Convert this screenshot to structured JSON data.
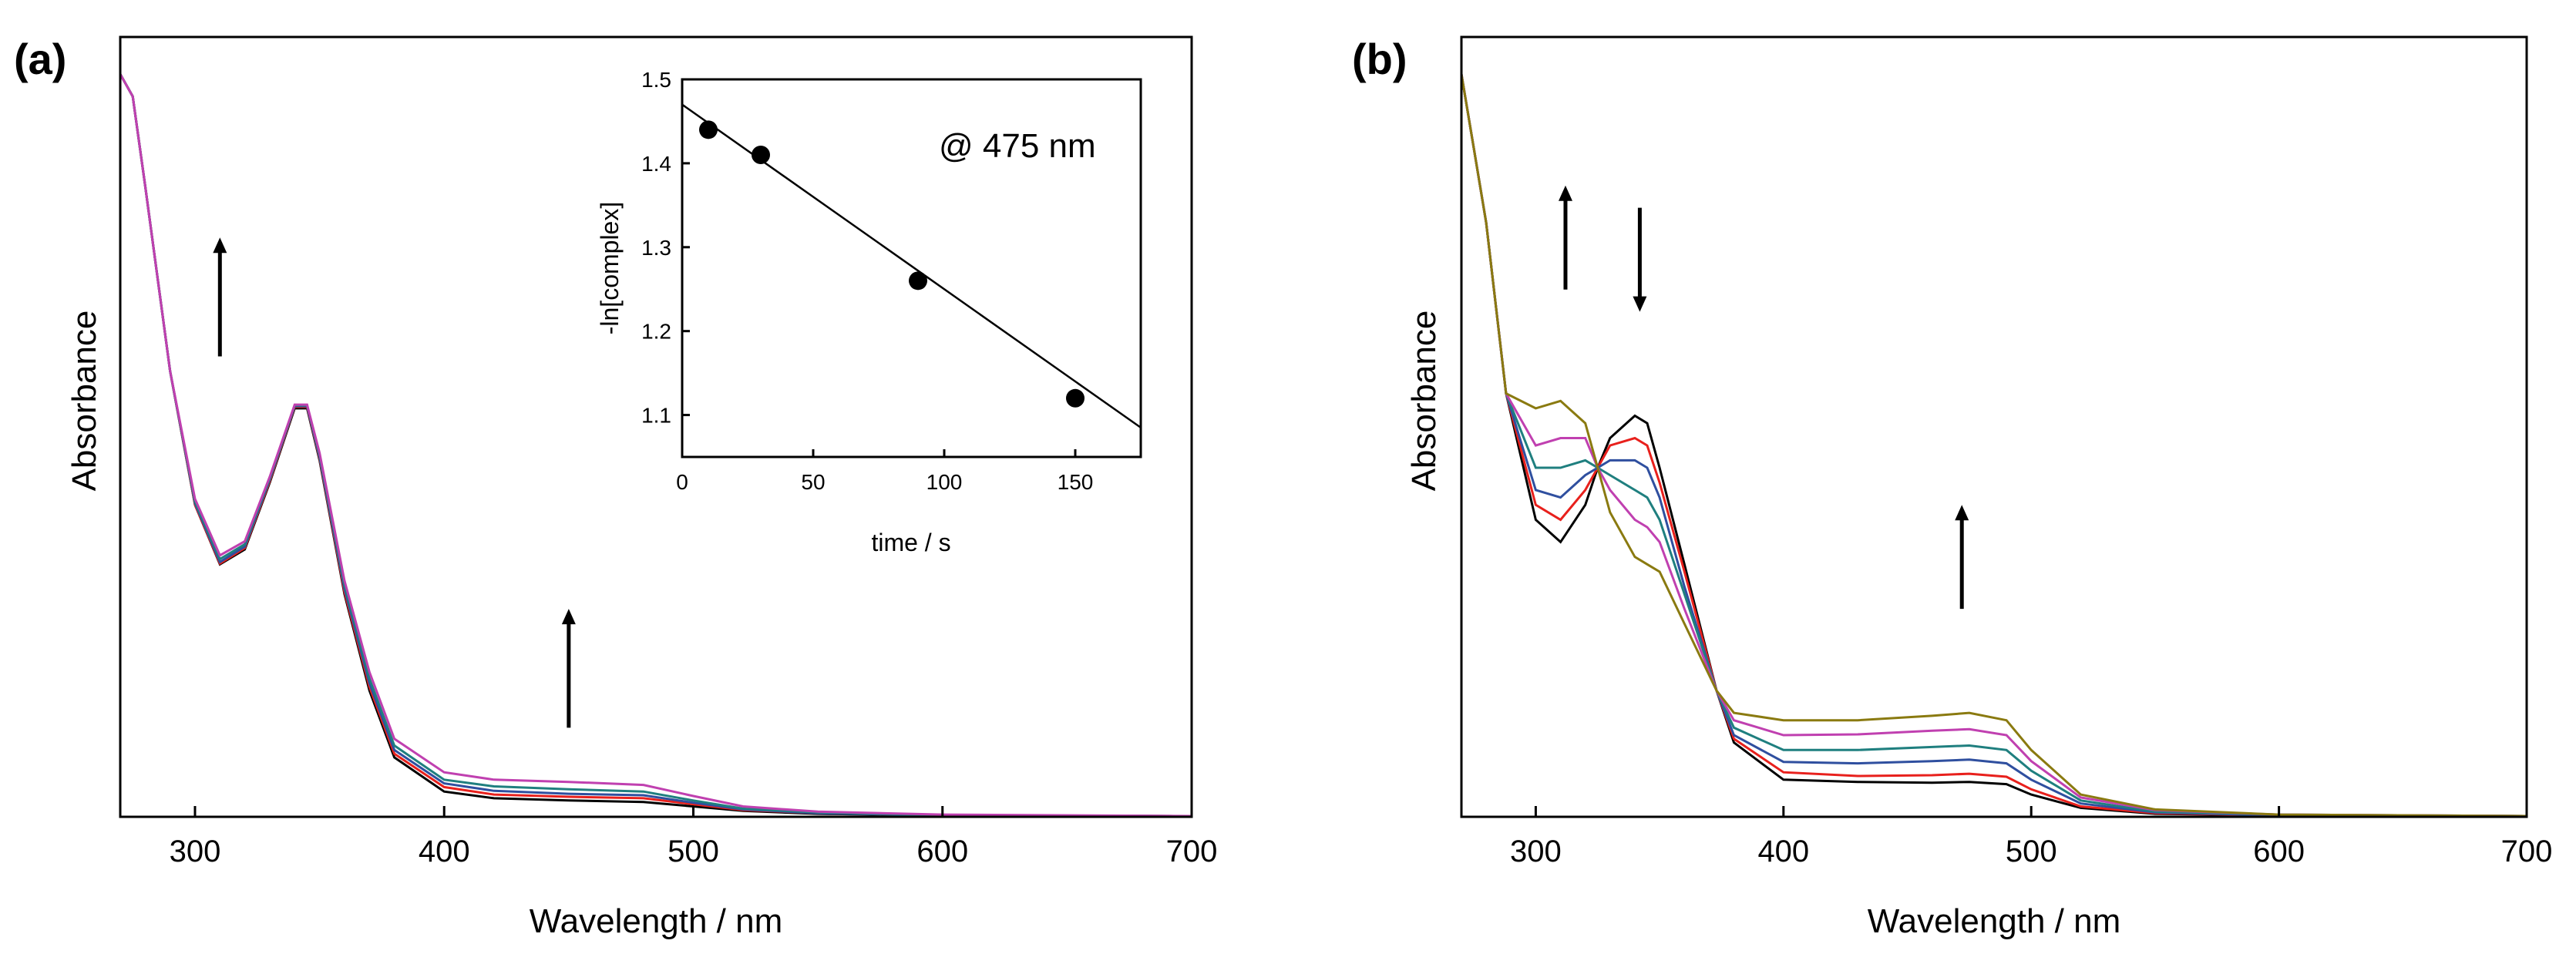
{
  "chart_data": [
    {
      "type": "line",
      "panel_label": "(a)",
      "xlabel": "Wavelength / nm",
      "ylabel": "Absorbance",
      "xlim": [
        270,
        700
      ],
      "ylim": [
        0,
        1.05
      ],
      "xticks": [
        300,
        400,
        500,
        600,
        700
      ],
      "yticks_shown": false,
      "series": [
        {
          "color": "#000000",
          "x": [
            270,
            275,
            280,
            290,
            300,
            310,
            320,
            330,
            340,
            345,
            350,
            360,
            370,
            380,
            400,
            420,
            450,
            480,
            500,
            520,
            550,
            600,
            700
          ],
          "y": [
            1.0,
            0.97,
            0.85,
            0.6,
            0.42,
            0.34,
            0.36,
            0.45,
            0.55,
            0.55,
            0.48,
            0.3,
            0.17,
            0.08,
            0.034,
            0.025,
            0.022,
            0.02,
            0.014,
            0.008,
            0.004,
            0.002,
            0.001
          ]
        },
        {
          "color": "#e8201c",
          "x": [
            270,
            275,
            280,
            290,
            300,
            310,
            320,
            330,
            340,
            345,
            350,
            360,
            370,
            380,
            400,
            420,
            450,
            480,
            500,
            520,
            550,
            600,
            700
          ],
          "y": [
            1.0,
            0.97,
            0.85,
            0.6,
            0.42,
            0.341,
            0.362,
            0.452,
            0.552,
            0.552,
            0.482,
            0.303,
            0.175,
            0.085,
            0.04,
            0.03,
            0.027,
            0.025,
            0.017,
            0.009,
            0.005,
            0.002,
            0.001
          ]
        },
        {
          "color": "#2f4f9f",
          "x": [
            270,
            275,
            280,
            290,
            300,
            310,
            320,
            330,
            340,
            345,
            350,
            360,
            370,
            380,
            400,
            420,
            450,
            480,
            500,
            520,
            550,
            600,
            700
          ],
          "y": [
            1.0,
            0.97,
            0.85,
            0.6,
            0.422,
            0.343,
            0.364,
            0.454,
            0.553,
            0.553,
            0.484,
            0.307,
            0.18,
            0.09,
            0.045,
            0.035,
            0.031,
            0.029,
            0.019,
            0.01,
            0.005,
            0.002,
            0.001
          ]
        },
        {
          "color": "#1f7f7f",
          "x": [
            270,
            275,
            280,
            290,
            300,
            310,
            320,
            330,
            340,
            345,
            350,
            360,
            370,
            380,
            400,
            420,
            450,
            480,
            500,
            520,
            550,
            600,
            700
          ],
          "y": [
            1.0,
            0.97,
            0.85,
            0.6,
            0.424,
            0.347,
            0.367,
            0.456,
            0.554,
            0.554,
            0.487,
            0.312,
            0.186,
            0.096,
            0.05,
            0.041,
            0.037,
            0.034,
            0.022,
            0.011,
            0.006,
            0.002,
            0.001
          ]
        },
        {
          "color": "#c040b0",
          "x": [
            270,
            275,
            280,
            290,
            300,
            310,
            320,
            330,
            340,
            345,
            350,
            360,
            370,
            380,
            400,
            420,
            450,
            480,
            500,
            520,
            550,
            600,
            700
          ],
          "y": [
            1.0,
            0.97,
            0.85,
            0.6,
            0.428,
            0.352,
            0.371,
            0.458,
            0.555,
            0.555,
            0.49,
            0.318,
            0.195,
            0.105,
            0.06,
            0.05,
            0.047,
            0.043,
            0.028,
            0.014,
            0.007,
            0.003,
            0.001
          ]
        }
      ],
      "arrows": [
        {
          "direction": "up",
          "x": 310,
          "y_from": 0.62,
          "y_to": 0.78
        },
        {
          "direction": "up",
          "x": 450,
          "y_from": 0.12,
          "y_to": 0.28
        }
      ],
      "inset": {
        "type": "scatter",
        "annotation": "@ 475 nm",
        "xlabel": "time / s",
        "ylabel": "-ln[complex]",
        "xlim": [
          0,
          175
        ],
        "ylim": [
          1.05,
          1.5
        ],
        "xticks": [
          0,
          50,
          100,
          150
        ],
        "yticks": [
          1.1,
          1.2,
          1.3,
          1.4,
          1.5
        ],
        "points": {
          "x": [
            10,
            30,
            90,
            150
          ],
          "y": [
            1.44,
            1.41,
            1.26,
            1.12
          ]
        },
        "fit_line": {
          "x": [
            0,
            175
          ],
          "y": [
            1.47,
            1.085
          ]
        }
      }
    },
    {
      "type": "line",
      "panel_label": "(b)",
      "xlabel": "Wavelength / nm",
      "ylabel": "Absorbance",
      "xlim": [
        270,
        700
      ],
      "ylim": [
        0,
        1.05
      ],
      "xticks": [
        300,
        400,
        500,
        600,
        700
      ],
      "yticks_shown": false,
      "series": [
        {
          "color": "#000000",
          "x": [
            270,
            275,
            280,
            288,
            300,
            310,
            320,
            325,
            330,
            340,
            345,
            350,
            360,
            373,
            380,
            400,
            430,
            460,
            475,
            490,
            500,
            520,
            550,
            600,
            700
          ],
          "y": [
            1.0,
            0.9,
            0.8,
            0.57,
            0.4,
            0.37,
            0.42,
            0.47,
            0.51,
            0.54,
            0.53,
            0.47,
            0.34,
            0.17,
            0.1,
            0.05,
            0.047,
            0.046,
            0.047,
            0.044,
            0.03,
            0.012,
            0.004,
            0.002,
            0.001
          ]
        },
        {
          "color": "#e8201c",
          "x": [
            270,
            275,
            280,
            288,
            300,
            310,
            320,
            325,
            330,
            340,
            345,
            350,
            360,
            373,
            380,
            400,
            430,
            460,
            475,
            490,
            500,
            520,
            550,
            600,
            700
          ],
          "y": [
            1.0,
            0.9,
            0.8,
            0.57,
            0.42,
            0.4,
            0.44,
            0.47,
            0.5,
            0.51,
            0.5,
            0.45,
            0.33,
            0.17,
            0.105,
            0.06,
            0.055,
            0.056,
            0.058,
            0.054,
            0.037,
            0.014,
            0.005,
            0.002,
            0.001
          ]
        },
        {
          "color": "#2f4f9f",
          "x": [
            270,
            275,
            280,
            288,
            300,
            310,
            320,
            325,
            330,
            340,
            345,
            350,
            360,
            373,
            380,
            400,
            430,
            460,
            475,
            490,
            500,
            520,
            550,
            600,
            700
          ],
          "y": [
            1.0,
            0.9,
            0.8,
            0.57,
            0.44,
            0.43,
            0.46,
            0.47,
            0.48,
            0.48,
            0.47,
            0.43,
            0.31,
            0.17,
            0.11,
            0.074,
            0.072,
            0.075,
            0.077,
            0.072,
            0.05,
            0.018,
            0.006,
            0.002,
            0.001
          ]
        },
        {
          "color": "#1f7f7f",
          "x": [
            270,
            275,
            280,
            288,
            300,
            310,
            320,
            325,
            330,
            340,
            345,
            350,
            360,
            373,
            380,
            400,
            430,
            460,
            475,
            490,
            500,
            520,
            550,
            600,
            700
          ],
          "y": [
            1.0,
            0.9,
            0.8,
            0.57,
            0.47,
            0.47,
            0.48,
            0.47,
            0.46,
            0.44,
            0.43,
            0.4,
            0.3,
            0.17,
            0.12,
            0.09,
            0.09,
            0.094,
            0.096,
            0.09,
            0.062,
            0.022,
            0.007,
            0.003,
            0.001
          ]
        },
        {
          "color": "#c040b0",
          "x": [
            270,
            275,
            280,
            288,
            300,
            310,
            320,
            325,
            330,
            340,
            345,
            350,
            360,
            373,
            380,
            400,
            430,
            460,
            475,
            490,
            500,
            520,
            550,
            600,
            700
          ],
          "y": [
            1.0,
            0.9,
            0.8,
            0.57,
            0.5,
            0.51,
            0.51,
            0.47,
            0.44,
            0.4,
            0.39,
            0.37,
            0.28,
            0.17,
            0.13,
            0.11,
            0.111,
            0.116,
            0.118,
            0.11,
            0.075,
            0.026,
            0.009,
            0.003,
            0.001
          ]
        },
        {
          "color": "#8a7a10",
          "x": [
            270,
            275,
            280,
            288,
            300,
            310,
            320,
            325,
            330,
            340,
            345,
            350,
            360,
            373,
            380,
            400,
            430,
            460,
            475,
            490,
            500,
            520,
            550,
            600,
            700
          ],
          "y": [
            1.0,
            0.9,
            0.8,
            0.57,
            0.55,
            0.56,
            0.53,
            0.47,
            0.41,
            0.35,
            0.34,
            0.33,
            0.26,
            0.17,
            0.14,
            0.13,
            0.13,
            0.136,
            0.14,
            0.13,
            0.09,
            0.03,
            0.01,
            0.003,
            0.001
          ]
        }
      ],
      "arrows": [
        {
          "direction": "up",
          "x": 312,
          "y_from": 0.71,
          "y_to": 0.85
        },
        {
          "direction": "down",
          "x": 342,
          "y_from": 0.82,
          "y_to": 0.68
        },
        {
          "direction": "up",
          "x": 472,
          "y_from": 0.28,
          "y_to": 0.42
        }
      ]
    }
  ]
}
